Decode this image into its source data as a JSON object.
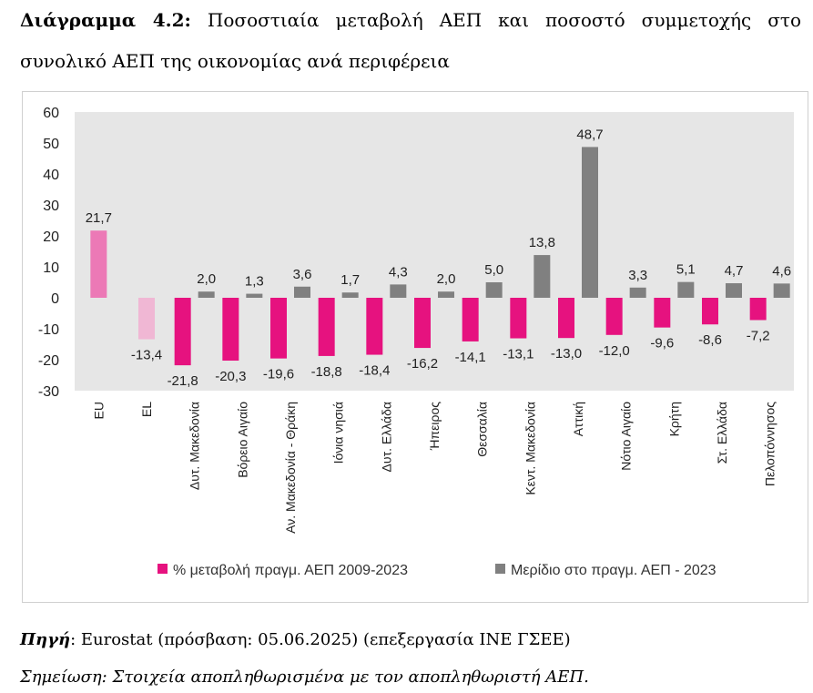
{
  "caption": {
    "label": "Διάγραμμα 4.2:",
    "text": " Ποσοστιαία μεταβολή ΑΕΠ και ποσοστό συμμετοχής στο συνολικό ΑΕΠ της οικονομίας ανά περιφέρεια"
  },
  "source": {
    "label": "Πηγή",
    "text": ": Eurostat (πρόσβαση: 05.06.2025) (επεξεργασία ΙΝΕ ΓΣΕΕ)"
  },
  "note": "Σημείωση: Στοιχεία αποπληθωρισμένα με τον αποπληθωριστή ΑΕΠ.",
  "chart_data": {
    "type": "bar",
    "title": "",
    "xlabel": "",
    "ylabel": "",
    "ylim": [
      -30,
      60
    ],
    "yticks": [
      "60",
      "50",
      "40",
      "30",
      "20",
      "10",
      "0",
      "-10",
      "-20",
      "-30"
    ],
    "grid": false,
    "plot_background": "#e6e6e6",
    "legend_position": "bottom",
    "categories": [
      "EU",
      "EL",
      "Δυτ. Μακεδονία",
      "Βόρειο Αιγαίο",
      "Αν. Μακεδονία - Θράκη",
      "Ιόνια νησιά",
      "Δυτ. Ελλάδα",
      "Ήπειρος",
      "Θεσσαλία",
      "Κεντ. Μακεδονία",
      "Αττική",
      "Νότιο Αιγαίο",
      "Κρήτη",
      "Στ. Ελλάδα",
      "Πελοπόννησος"
    ],
    "series": [
      {
        "name": "% μεταβολή πραγμ. ΑΕΠ 2009-2023",
        "color": "#e6127f",
        "point_colors": [
          "#ec79b6",
          "#f0b7d4"
        ],
        "values": [
          21.7,
          -13.4,
          -21.8,
          -20.3,
          -19.6,
          -18.8,
          -18.4,
          -16.2,
          -14.1,
          -13.1,
          -13.0,
          -12.0,
          -9.6,
          -8.6,
          -7.2
        ],
        "labels": [
          "21,7",
          "-13,4",
          "-21,8",
          "-20,3",
          "-19,6",
          "-18,8",
          "-18,4",
          "-16,2",
          "-14,1",
          "-13,1",
          "-13,0",
          "-12,0",
          "-9,6",
          "-8,6",
          "-7,2"
        ]
      },
      {
        "name": "Μερίδιο στο πραγμ. ΑΕΠ - 2023",
        "color": "#808080",
        "values": [
          null,
          null,
          2.0,
          1.3,
          3.6,
          1.7,
          4.3,
          2.0,
          5.0,
          13.8,
          48.7,
          3.3,
          5.1,
          4.7,
          4.6
        ],
        "labels": [
          "",
          "",
          "2,0",
          "1,3",
          "3,6",
          "1,7",
          "4,3",
          "2,0",
          "5,0",
          "13,8",
          "48,7",
          "3,3",
          "5,1",
          "4,7",
          "4,6"
        ]
      }
    ]
  }
}
